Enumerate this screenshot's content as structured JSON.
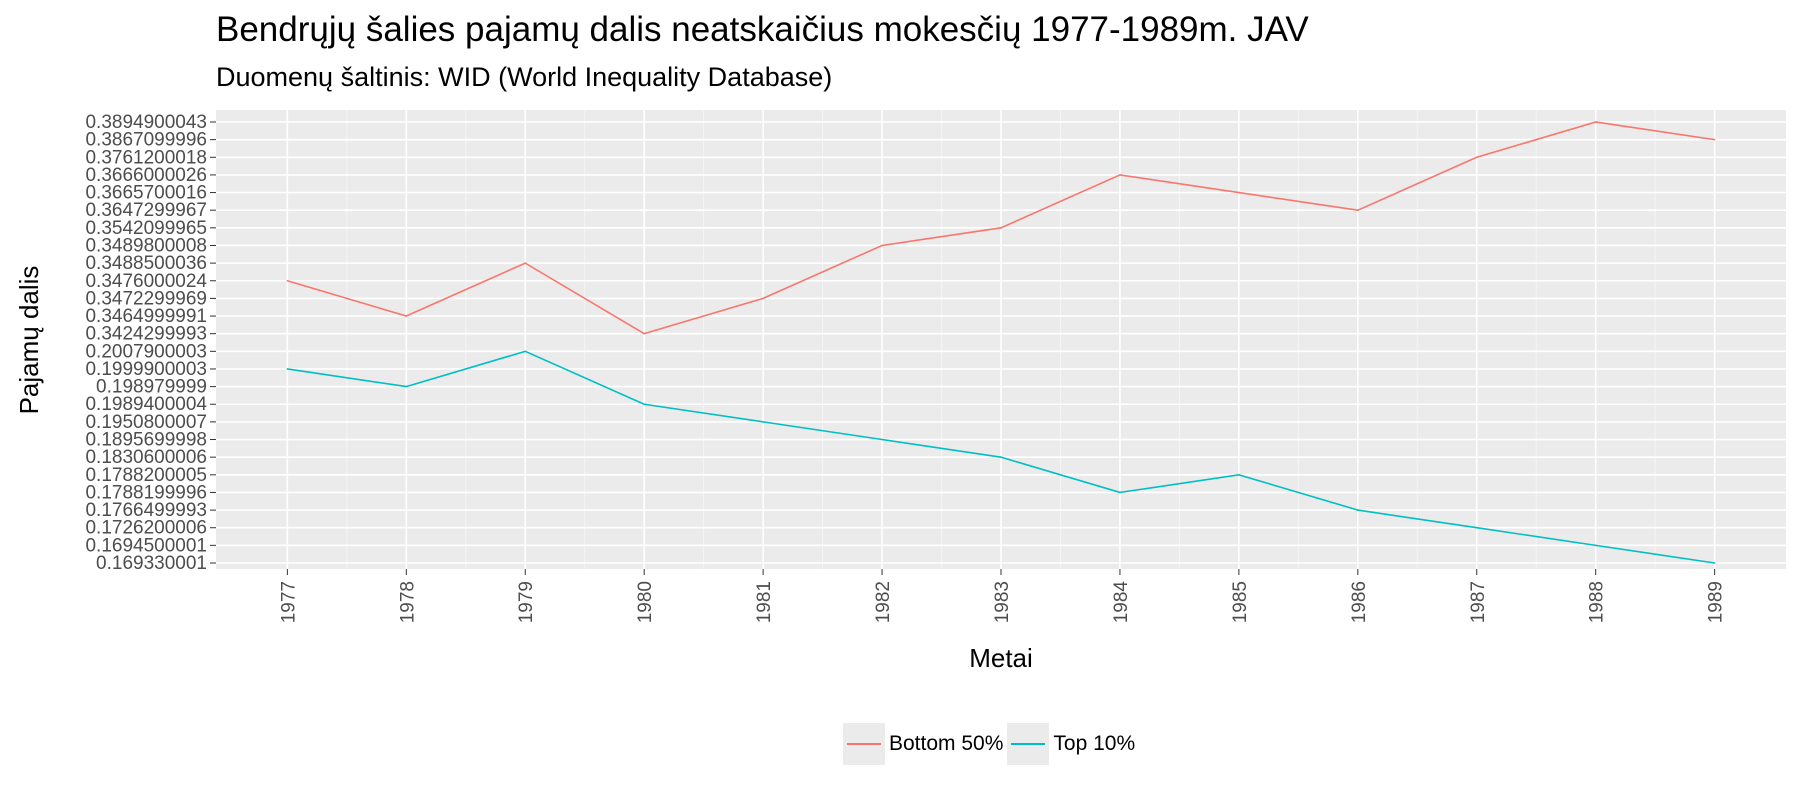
{
  "chart_data": {
    "type": "line",
    "title": "Bendrųjų šalies pajamų dalis neatskaičius mokesčių 1977-1989m. JAV",
    "subtitle": "Duomenų šaltinis: WID (World Inequality Database)",
    "xlabel": "Metai",
    "ylabel": "Pajamų dalis",
    "x": [
      "1977",
      "1978",
      "1979",
      "1980",
      "1981",
      "1982",
      "1983",
      "1984",
      "1985",
      "1986",
      "1987",
      "1988",
      "1989"
    ],
    "y_ticks": [
      "0.169330001",
      "0.1694500001",
      "0.1726200006",
      "0.1766499993",
      "0.1788199996",
      "0.1788200005",
      "0.1830600006",
      "0.1895699998",
      "0.1950800007",
      "0.1989400004",
      "0.198979999",
      "0.1999900003",
      "0.2007900003",
      "0.3424299993",
      "0.3464999991",
      "0.3472299969",
      "0.3476000024",
      "0.3488500036",
      "0.3489800008",
      "0.3542099965",
      "0.3647299967",
      "0.3665700016",
      "0.3666000026",
      "0.3761200018",
      "0.3867099996",
      "0.3894900043"
    ],
    "y_scale": "discrete (each distinct value is one tick)",
    "grid": true,
    "legend_position": "bottom",
    "series": [
      {
        "name": "Bottom 50%",
        "color": "#F8766D",
        "values": [
          "0.3476000024",
          "0.3464999991",
          "0.3488500036",
          "0.3424299993",
          "0.3472299969",
          "0.3489800008",
          "0.3542099965",
          "0.3666000026",
          "0.3665700016",
          "0.3647299967",
          "0.3761200018",
          "0.3894900043",
          "0.3867099996"
        ]
      },
      {
        "name": "Top 10%",
        "color": "#00BFC4",
        "values": [
          "0.1999900003",
          "0.198979999",
          "0.2007900003",
          "0.1989400004",
          "0.1950800007",
          "0.1895699998",
          "0.1830600006",
          "0.1788199996",
          "0.1788200005",
          "0.1766499993",
          "0.1726200006",
          "0.1694500001",
          "0.169330001"
        ]
      }
    ]
  }
}
